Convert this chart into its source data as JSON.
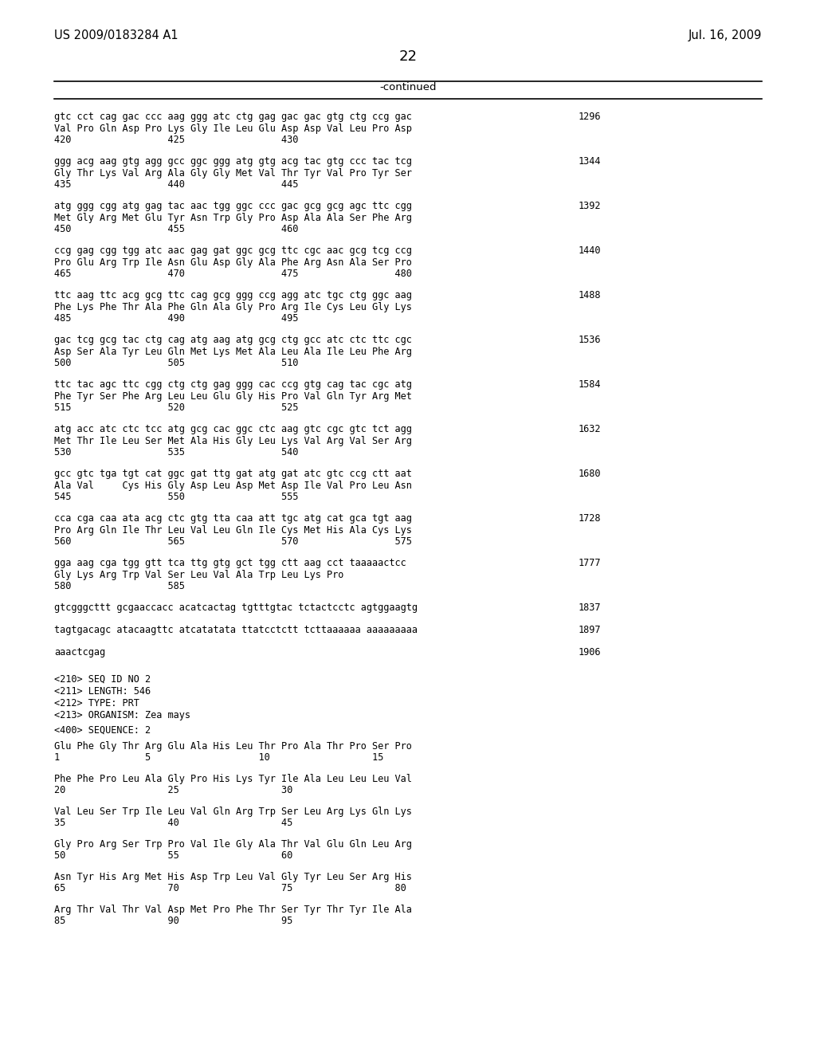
{
  "patent_number": "US 2009/0183284 A1",
  "date": "Jul. 16, 2009",
  "page_number": "22",
  "continued_label": "-continued",
  "background_color": "#ffffff",
  "text_color": "#000000",
  "content_blocks": [
    {
      "dna": "gtc cct cag gac ccc aag ggg atc ctg gag gac gac gtg ctg ccg gac",
      "aa": "Val Pro Gln Asp Pro Lys Gly Ile Leu Glu Asp Asp Val Leu Pro Asp",
      "nums": "420                 425                 430",
      "linenum": "1296"
    },
    {
      "dna": "ggg acg aag gtg agg gcc ggc ggg atg gtg acg tac gtg ccc tac tcg",
      "aa": "Gly Thr Lys Val Arg Ala Gly Gly Met Val Thr Tyr Val Pro Tyr Ser",
      "nums": "435                 440                 445",
      "linenum": "1344"
    },
    {
      "dna": "atg ggg cgg atg gag tac aac tgg ggc ccc gac gcg gcg agc ttc cgg",
      "aa": "Met Gly Arg Met Glu Tyr Asn Trp Gly Pro Asp Ala Ala Ser Phe Arg",
      "nums": "450                 455                 460",
      "linenum": "1392"
    },
    {
      "dna": "ccg gag cgg tgg atc aac gag gat ggc gcg ttc cgc aac gcg tcg ccg",
      "aa": "Pro Glu Arg Trp Ile Asn Glu Asp Gly Ala Phe Arg Asn Ala Ser Pro",
      "nums": "465                 470                 475                 480",
      "linenum": "1440"
    },
    {
      "dna": "ttc aag ttc acg gcg ttc cag gcg ggg ccg agg atc tgc ctg ggc aag",
      "aa": "Phe Lys Phe Thr Ala Phe Gln Ala Gly Pro Arg Ile Cys Leu Gly Lys",
      "nums": "485                 490                 495",
      "linenum": "1488"
    },
    {
      "dna": "gac tcg gcg tac ctg cag atg aag atg gcg ctg gcc atc ctc ttc cgc",
      "aa": "Asp Ser Ala Tyr Leu Gln Met Lys Met Ala Leu Ala Ile Leu Phe Arg",
      "nums": "500                 505                 510",
      "linenum": "1536"
    },
    {
      "dna": "ttc tac agc ttc cgg ctg ctg gag ggg cac ccg gtg cag tac cgc atg",
      "aa": "Phe Tyr Ser Phe Arg Leu Leu Glu Gly His Pro Val Gln Tyr Arg Met",
      "nums": "515                 520                 525",
      "linenum": "1584"
    },
    {
      "dna": "atg acc atc ctc tcc atg gcg cac ggc ctc aag gtc cgc gtc tct agg",
      "aa": "Met Thr Ile Leu Ser Met Ala His Gly Leu Lys Val Arg Val Ser Arg",
      "nums": "530                 535                 540",
      "linenum": "1632"
    },
    {
      "dna": "gcc gtc tga tgt cat ggc gat ttg gat atg gat atc gtc ccg ctt aat",
      "aa": "Ala Val     Cys His Gly Asp Leu Asp Met Asp Ile Val Pro Leu Asn",
      "nums": "545                 550                 555",
      "linenum": "1680"
    },
    {
      "dna": "cca cga caa ata acg ctc gtg tta caa att tgc atg cat gca tgt aag",
      "aa": "Pro Arg Gln Ile Thr Leu Val Leu Gln Ile Cys Met His Ala Cys Lys",
      "nums": "560                 565                 570                 575",
      "linenum": "1728"
    },
    {
      "dna": "gga aag cga tgg gtt tca ttg gtg gct tgg ctt aag cct taaaaactcc",
      "aa": "Gly Lys Arg Trp Val Ser Leu Val Ala Trp Leu Lys Pro",
      "nums": "580                 585",
      "linenum": "1777"
    },
    {
      "dna": "gtcgggcttt gcgaaccacc acatcactag tgtttgtac tctactcctc agtggaagtg",
      "aa": "",
      "nums": "",
      "linenum": "1837"
    },
    {
      "dna": "tagtgacagc atacaagttc atcatatata ttatcctctt tcttaaaaaa aaaaaaaaa",
      "aa": "",
      "nums": "",
      "linenum": "1897"
    },
    {
      "dna": "aaactcgag",
      "aa": "",
      "nums": "",
      "linenum": "1906"
    }
  ],
  "seq_info": [
    "<210> SEQ ID NO 2",
    "<211> LENGTH: 546",
    "<212> TYPE: PRT",
    "<213> ORGANISM: Zea mays"
  ],
  "seq400": "<400> SEQUENCE: 2",
  "protein_blocks": [
    {
      "aa": "Glu Phe Gly Thr Arg Glu Ala His Leu Thr Pro Ala Thr Pro Ser Pro",
      "nums": "1               5                   10                  15"
    },
    {
      "aa": "Phe Phe Pro Leu Ala Gly Pro His Lys Tyr Ile Ala Leu Leu Leu Val",
      "nums": "20                  25                  30"
    },
    {
      "aa": "Val Leu Ser Trp Ile Leu Val Gln Arg Trp Ser Leu Arg Lys Gln Lys",
      "nums": "35                  40                  45"
    },
    {
      "aa": "Gly Pro Arg Ser Trp Pro Val Ile Gly Ala Thr Val Glu Gln Leu Arg",
      "nums": "50                  55                  60"
    },
    {
      "aa": "Asn Tyr His Arg Met His Asp Trp Leu Val Gly Tyr Leu Ser Arg His",
      "nums": "65                  70                  75                  80"
    },
    {
      "aa": "Arg Thr Val Thr Val Asp Met Pro Phe Thr Ser Tyr Thr Tyr Ile Ala",
      "nums": "85                  90                  95"
    }
  ]
}
